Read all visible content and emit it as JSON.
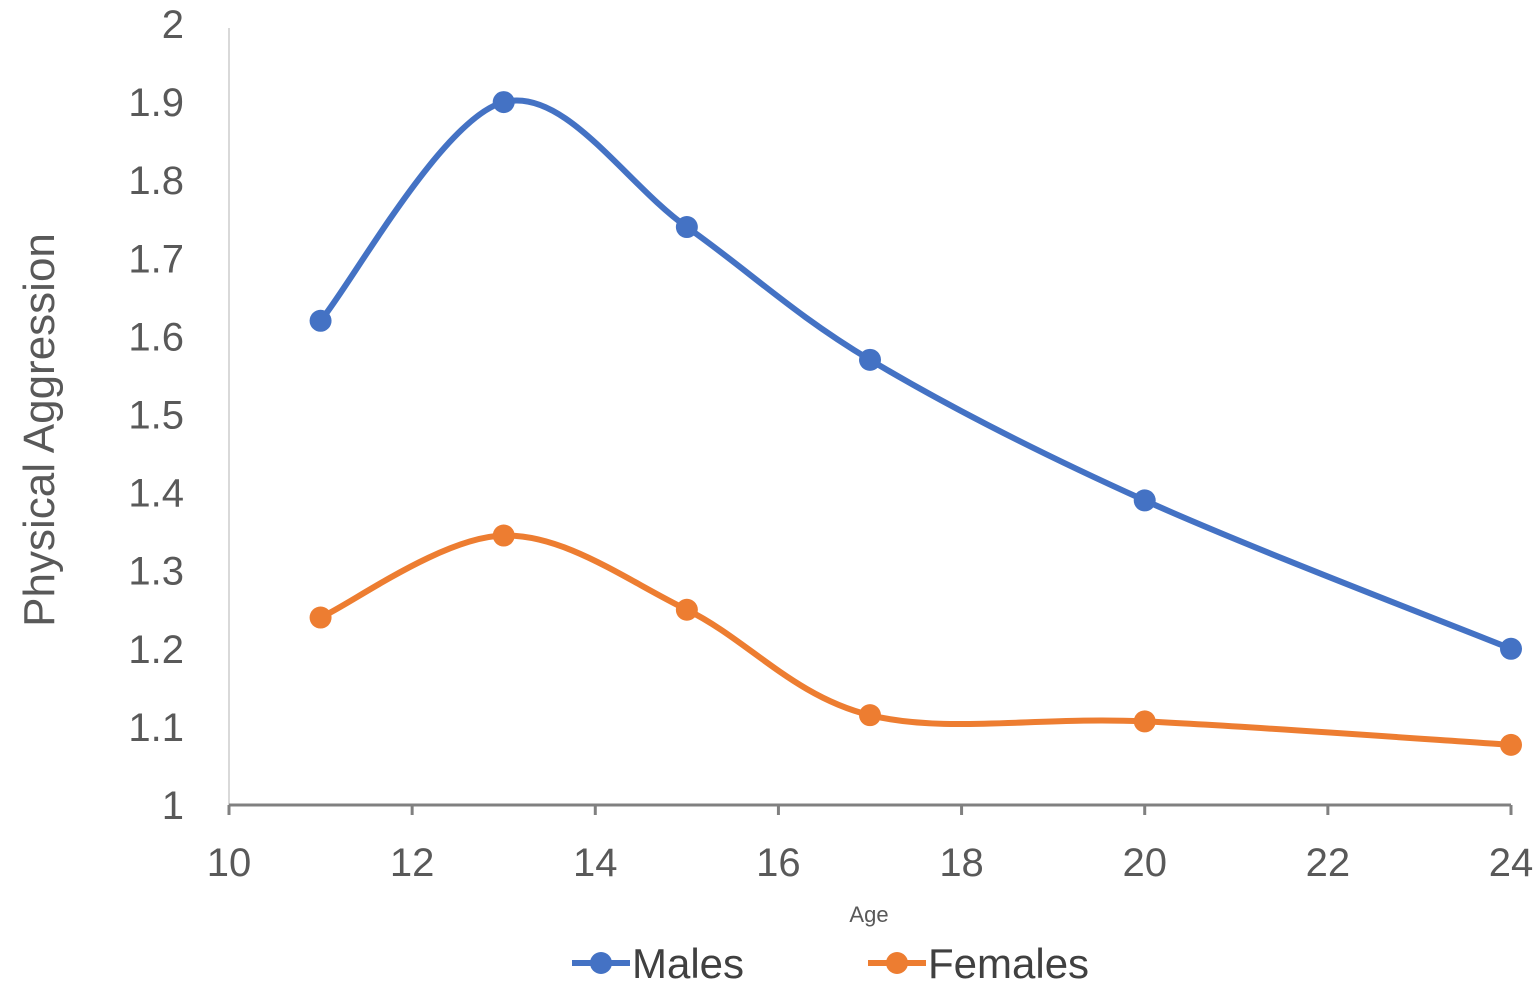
{
  "chart_data": {
    "type": "line",
    "title": "",
    "xlabel": "Age",
    "ylabel": "Physical Aggression",
    "xlim": [
      10,
      24
    ],
    "ylim": [
      1,
      2
    ],
    "x_ticks": [
      10,
      12,
      14,
      16,
      18,
      20,
      22,
      24
    ],
    "y_ticks": [
      1,
      1.1,
      1.2,
      1.3,
      1.4,
      1.5,
      1.6,
      1.7,
      1.8,
      1.9,
      2
    ],
    "x_tick_labels": [
      "10",
      "12",
      "14",
      "16",
      "18",
      "20",
      "22",
      "24"
    ],
    "y_tick_labels": [
      "1",
      "1.1",
      "1.2",
      "1.3",
      "1.4",
      "1.5",
      "1.6",
      "1.7",
      "1.8",
      "1.9",
      "2"
    ],
    "grid": false,
    "smooth": true,
    "legend_position": "bottom",
    "x": [
      11,
      13,
      15,
      17,
      20,
      24
    ],
    "series": [
      {
        "name": "Males",
        "color": "#4472C4",
        "values": [
          1.62,
          1.9,
          1.74,
          1.57,
          1.39,
          1.2
        ]
      },
      {
        "name": "Females",
        "color": "#ED7D31",
        "values": [
          1.24,
          1.345,
          1.25,
          1.115,
          1.107,
          1.077
        ]
      }
    ]
  }
}
